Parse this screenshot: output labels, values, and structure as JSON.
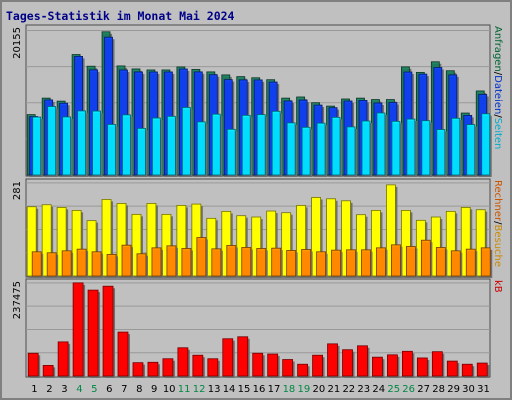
{
  "chart_data": {
    "type": "bar",
    "title": "Tages-Statistik im Monat Mai 2024",
    "categories": [
      "1",
      "2",
      "3",
      "4",
      "5",
      "6",
      "7",
      "8",
      "9",
      "10",
      "11",
      "12",
      "13",
      "14",
      "15",
      "16",
      "17",
      "18",
      "19",
      "20",
      "21",
      "22",
      "23",
      "24",
      "25",
      "26",
      "27",
      "28",
      "29",
      "30",
      "31"
    ],
    "weekend_days": [
      "4",
      "5",
      "11",
      "12",
      "18",
      "19",
      "25",
      "26"
    ],
    "panels": [
      {
        "id": "requests",
        "max_label": "20155",
        "axis_max": 20155,
        "right_labels": [
          {
            "text": "Anfragen",
            "color": "#006633"
          },
          {
            "text": "/",
            "color": "#000000"
          },
          {
            "text": "Dateien",
            "color": "#0033cc"
          },
          {
            "text": "/",
            "color": "#000000"
          },
          {
            "text": "Seiten",
            "color": "#00aacc"
          }
        ],
        "series": [
          {
            "name": "Anfragen",
            "color": "#1e7a5a",
            "values": [
              8420,
              10720,
              10300,
              16800,
              15170,
              19970,
              15210,
              14790,
              14650,
              14650,
              15070,
              14720,
              14380,
              13960,
              13720,
              13560,
              13290,
              10720,
              10880,
              10080,
              9610,
              10600,
              10720,
              10520,
              10520,
              15080,
              14310,
              15790,
              14540,
              8640,
              11720
            ]
          },
          {
            "name": "Dateien",
            "color": "#1040ee",
            "values": [
              8150,
              10470,
              10010,
              16540,
              14660,
              19220,
              14640,
              14370,
              14370,
              14370,
              14780,
              14380,
              13980,
              13300,
              13260,
              13260,
              12960,
              10320,
              10450,
              9750,
              9390,
              10320,
              10400,
              10040,
              10110,
              14360,
              14070,
              14990,
              13960,
              8310,
              11230
            ]
          },
          {
            "name": "Seiten",
            "color": "#00ddff",
            "values": [
              8080,
              9550,
              8100,
              8940,
              8920,
              7050,
              8390,
              6500,
              7950,
              8180,
              9420,
              7410,
              8480,
              6370,
              8320,
              8420,
              8880,
              7270,
              6650,
              7230,
              8040,
              6710,
              7530,
              8650,
              7480,
              7800,
              7570,
              6340,
              7910,
              7030,
              8540
            ]
          }
        ]
      },
      {
        "id": "visits",
        "max_label": "281",
        "axis_max": 281,
        "right_labels": [
          {
            "text": "Rechner",
            "color": "#cc5500"
          },
          {
            "text": "/",
            "color": "#000000"
          },
          {
            "text": "Besuche",
            "color": "#cc8800"
          }
        ],
        "series": [
          {
            "name": "Besuche",
            "color": "#ffff00",
            "values": [
              209,
              215,
              207,
              198,
              167,
              231,
              219,
              186,
              219,
              186,
              213,
              217,
              174,
              195,
              182,
              178,
              196,
              191,
              213,
              237,
              233,
              227,
              185,
              198,
              275,
              198,
              168,
              178,
              195,
              207,
              200
            ]
          },
          {
            "name": "Rechner",
            "color": "#ff8800",
            "values": [
              73,
              70,
              76,
              81,
              73,
              65,
              93,
              67,
              85,
              91,
              83,
              116,
              82,
              92,
              86,
              83,
              84,
              77,
              80,
              73,
              78,
              79,
              79,
              85,
              94,
              89,
              108,
              86,
              76,
              81,
              85
            ]
          }
        ]
      },
      {
        "id": "kb",
        "max_label": "237475",
        "axis_max": 237475,
        "right_labels": [
          {
            "text": "kB",
            "color": "#cc0000"
          }
        ],
        "series": [
          {
            "name": "kB",
            "color": "#ff0000",
            "values": [
              58000,
              27000,
              87000,
              237475,
              219000,
              229000,
              112000,
              34000,
              35000,
              44000,
              72000,
              53000,
              44000,
              95000,
              100000,
              58000,
              56000,
              42000,
              30000,
              53000,
              82000,
              67000,
              77000,
              48000,
              54000,
              63000,
              46000,
              62000,
              38000,
              30000,
              33000
            ]
          }
        ]
      }
    ]
  }
}
